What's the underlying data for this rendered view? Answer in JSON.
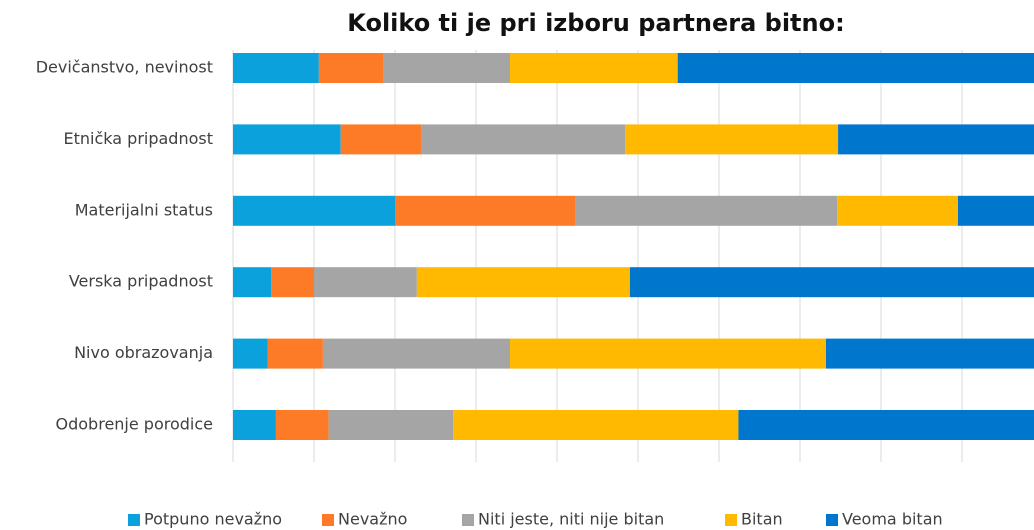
{
  "chart_data": {
    "type": "stacked_barh",
    "title": "Koliko ti je pri izboru partnera bitno:",
    "categories": [
      "Devičanstvo, nevinost",
      "Etnička pripadnost",
      "Materijalni status",
      "Verska pripadnost",
      "Nivo obrazovanja",
      "Odobrenje porodice"
    ],
    "series": [
      {
        "name": "Potpuno nevažno",
        "color": "#0aa1dd",
        "values": [
          10.6,
          13.3,
          20.0,
          4.7,
          4.3,
          5.3
        ]
      },
      {
        "name": "Nevažno",
        "color": "#fd7b27",
        "values": [
          8.0,
          10.0,
          22.3,
          5.3,
          6.8,
          6.5
        ]
      },
      {
        "name": "Niti jeste, niti nije bitan",
        "color": "#a5a5a5",
        "values": [
          15.6,
          25.1,
          32.3,
          12.7,
          23.1,
          15.4
        ]
      },
      {
        "name": "Bitan",
        "color": "#ffb900",
        "values": [
          20.7,
          26.3,
          14.9,
          26.3,
          39.0,
          35.2
        ]
      },
      {
        "name": "Veoma bitan",
        "color": "#0077cc",
        "values": [
          45.1,
          25.3,
          10.5,
          51.0,
          26.8,
          37.6
        ]
      }
    ],
    "xlim": [
      0,
      100
    ],
    "xticks": [
      0,
      10,
      20,
      30,
      40,
      50,
      60,
      70,
      80,
      90,
      100
    ],
    "grid": true
  }
}
